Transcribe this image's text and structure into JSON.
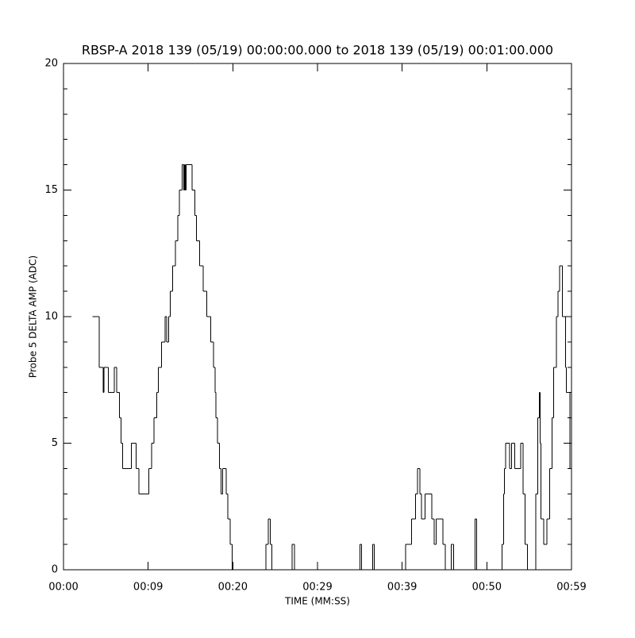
{
  "chart_data": {
    "type": "step",
    "title": "RBSP-A 2018 139 (05/19) 00:00:00.000 to 2018 139 (05/19) 00:01:00.000",
    "x_label": "TIME (MM:SS)",
    "y_label": "Probe 5 DELTA AMP (ADC)",
    "color": "#000000",
    "xlim": [
      0,
      60
    ],
    "xticks": [
      {
        "value": 0,
        "label": "00:00"
      },
      {
        "value": 10,
        "label": "00:09"
      },
      {
        "value": 20,
        "label": "00:20"
      },
      {
        "value": 30,
        "label": "00:29"
      },
      {
        "value": 40,
        "label": "00:39"
      },
      {
        "value": 50,
        "label": "00:50"
      },
      {
        "value": 60,
        "label": "00:59"
      }
    ],
    "ylim": [
      0,
      20
    ],
    "yticks": [
      0,
      5,
      10,
      15,
      20
    ],
    "yminorticks": [
      1,
      2,
      3,
      4,
      6,
      7,
      8,
      9,
      11,
      12,
      13,
      14,
      16,
      17,
      18,
      19
    ],
    "x": [
      3.4,
      4.2,
      4.7,
      4.8,
      5.3,
      6.0,
      6.3,
      6.6,
      6.8,
      7.0,
      8.0,
      8.6,
      8.9,
      10.1,
      10.4,
      10.7,
      11.0,
      11.2,
      11.6,
      12.0,
      12.2,
      12.4,
      12.6,
      12.9,
      13.2,
      13.5,
      13.7,
      14.0,
      14.2,
      14.3,
      14.4,
      14.5,
      15.2,
      15.5,
      15.7,
      16.1,
      16.5,
      16.9,
      17.4,
      17.7,
      17.9,
      18.0,
      18.2,
      18.4,
      18.6,
      18.8,
      19.2,
      19.4,
      19.7,
      19.9,
      23.9,
      24.2,
      24.4,
      24.6,
      27.0,
      27.3,
      35.0,
      35.2,
      36.5,
      36.7,
      40.4,
      41.1,
      41.6,
      41.8,
      42.1,
      42.3,
      42.7,
      43.5,
      43.8,
      44.0,
      44.8,
      45.1,
      45.8,
      46.1,
      48.6,
      48.8,
      51.8,
      52.0,
      52.1,
      52.2,
      52.7,
      52.9,
      53.3,
      54.0,
      54.3,
      54.5,
      54.8,
      55.8,
      56.0,
      56.2,
      56.3,
      56.4,
      56.7,
      57.1,
      57.4,
      57.7,
      57.9,
      58.2,
      58.4,
      58.6,
      58.9,
      59.3,
      59.4,
      59.8
    ],
    "values": [
      10,
      8,
      7,
      8,
      7,
      8,
      7,
      6,
      5,
      4,
      5,
      4,
      3,
      4,
      5,
      6,
      7,
      8,
      9,
      10,
      9,
      10,
      11,
      12,
      13,
      14,
      15,
      16,
      15,
      16,
      15,
      16,
      15,
      14,
      13,
      12,
      11,
      10,
      9,
      8,
      7,
      6,
      5,
      4,
      3,
      4,
      3,
      2,
      1,
      0,
      1,
      2,
      1,
      0,
      1,
      0,
      1,
      0,
      1,
      0,
      1,
      2,
      3,
      4,
      3,
      2,
      3,
      2,
      1,
      2,
      1,
      0,
      1,
      0,
      2,
      0,
      1,
      3,
      4,
      5,
      4,
      5,
      4,
      5,
      3,
      1,
      0,
      3,
      6,
      7,
      5,
      2,
      1,
      2,
      4,
      6,
      8,
      10,
      11,
      12,
      10,
      8,
      7,
      4
    ]
  }
}
